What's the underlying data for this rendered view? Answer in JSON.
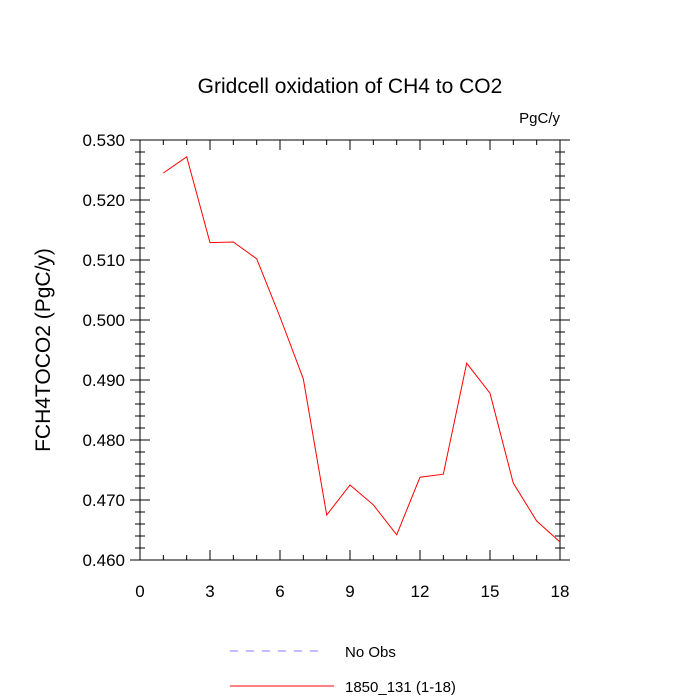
{
  "chart_data": {
    "type": "line",
    "title": "Gridcell oxidation of CH4 to CO2",
    "units_label": "PgC/y",
    "xlabel": "",
    "ylabel": "FCH4TOCO2  (PgC/y)",
    "xlim": [
      0,
      18
    ],
    "ylim": [
      0.46,
      0.53
    ],
    "x_ticks": [
      0,
      3,
      6,
      9,
      12,
      15,
      18
    ],
    "x_tick_labels": [
      "0",
      "3",
      "6",
      "9",
      "12",
      "15",
      "18"
    ],
    "y_ticks": [
      0.46,
      0.47,
      0.48,
      0.49,
      0.5,
      0.51,
      0.52,
      0.53
    ],
    "y_tick_labels": [
      "0.460",
      "0.470",
      "0.480",
      "0.490",
      "0.500",
      "0.510",
      "0.520",
      "0.530"
    ],
    "grid": false,
    "legend_position": "bottom-center",
    "series": [
      {
        "name": "No Obs",
        "color": "#8080ff",
        "dash": "dashed",
        "x": [],
        "values": []
      },
      {
        "name": "1850_131 (1-18)",
        "color": "#ff0000",
        "dash": "solid",
        "x": [
          1,
          2,
          3,
          4,
          5,
          6,
          7,
          8,
          9,
          10,
          11,
          12,
          13,
          14,
          15,
          16,
          17,
          18
        ],
        "values": [
          0.5245,
          0.5272,
          0.5129,
          0.513,
          0.5102,
          0.5005,
          0.4902,
          0.4675,
          0.4725,
          0.4692,
          0.4642,
          0.4738,
          0.4743,
          0.4928,
          0.4878,
          0.4728,
          0.4665,
          0.463
        ]
      }
    ]
  }
}
